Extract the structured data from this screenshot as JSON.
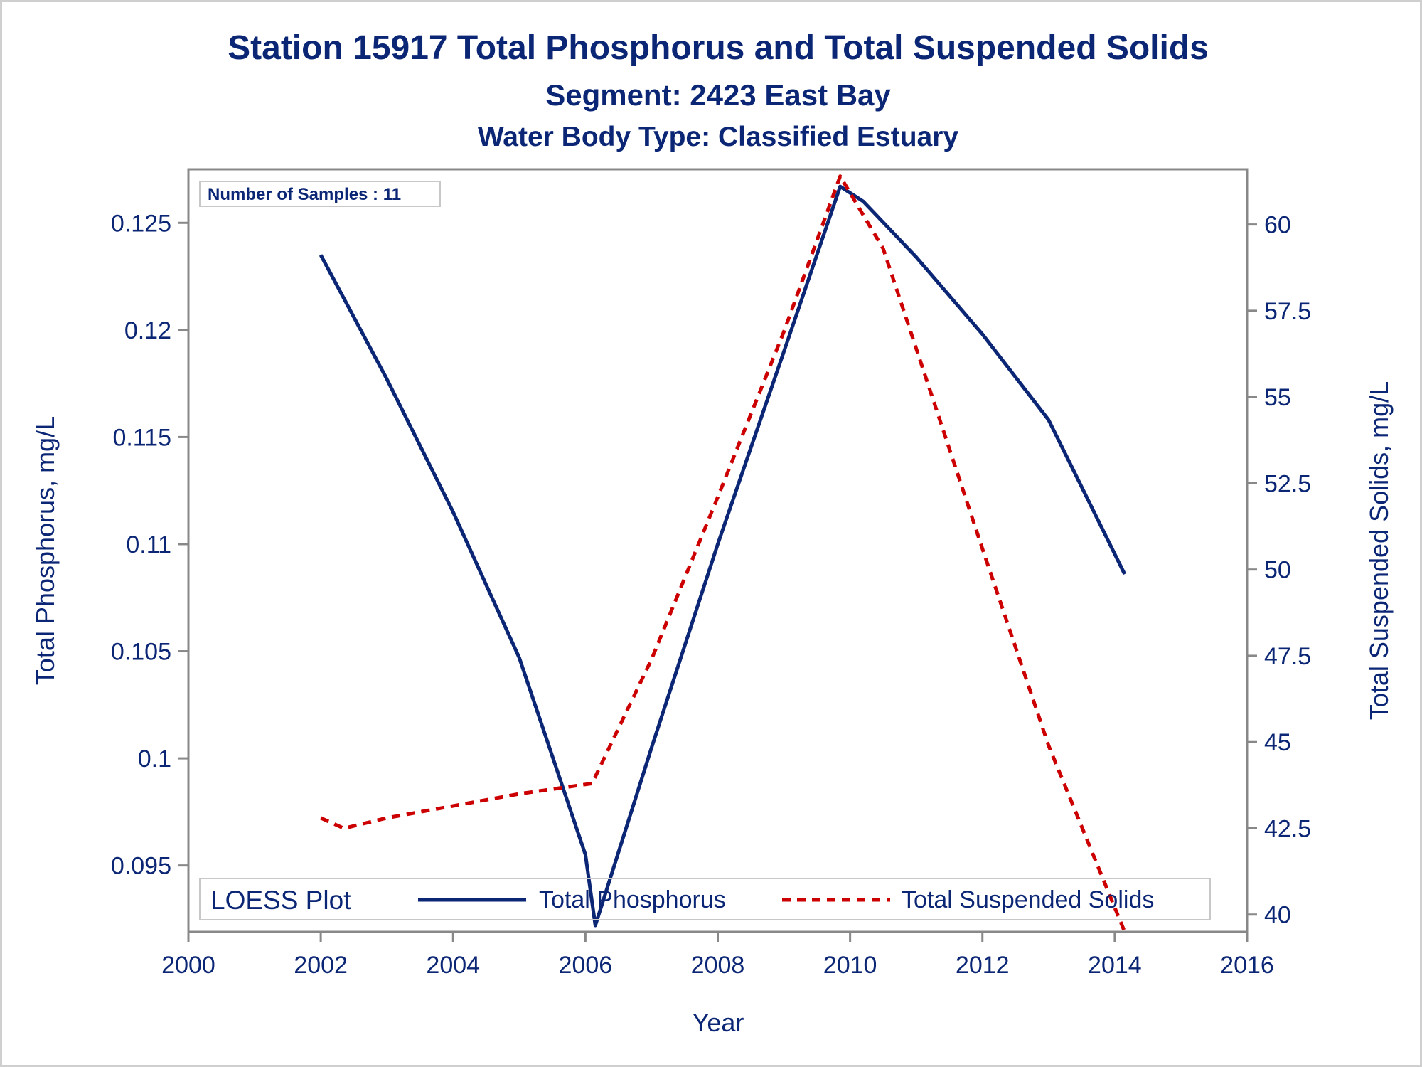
{
  "chart_data": {
    "type": "line",
    "title": "Station 15917  Total Phosphorus and Total Suspended Solids",
    "subtitle": "Segment: 2423  East Bay",
    "subtitle2": "Water Body Type: Classified Estuary",
    "xlabel": "Year",
    "ylabel_left": "Total Phosphorus, mg/L",
    "ylabel_right": "Total Suspended Solids, mg/L",
    "xlim": [
      2000,
      2016
    ],
    "ylim_left": [
      0.0919,
      0.1275
    ],
    "ylim_right": [
      39.5,
      61.6
    ],
    "x_ticks": [
      "2000",
      "2002",
      "2004",
      "2006",
      "2008",
      "2010",
      "2012",
      "2014",
      "2016"
    ],
    "y_left_ticks": [
      "0.095",
      "0.1",
      "0.105",
      "0.11",
      "0.115",
      "0.12",
      "0.125"
    ],
    "y_right_ticks": [
      "40",
      "42.5",
      "45",
      "47.5",
      "50",
      "52.5",
      "55",
      "57.5",
      "60"
    ],
    "inset_label": "Number of Samples : 11",
    "legend": {
      "title": "LOESS Plot",
      "position": "bottom-inside",
      "items": [
        "Total Phosphorus",
        "Total Suspended Solids"
      ]
    },
    "series": [
      {
        "name": "Total Phosphorus",
        "axis": "left",
        "color": "#0b2675",
        "style": "solid",
        "points": [
          [
            2002.0,
            0.1235
          ],
          [
            2003.0,
            0.1177
          ],
          [
            2004.0,
            0.1115
          ],
          [
            2005.0,
            0.1047
          ],
          [
            2006.0,
            0.0955
          ],
          [
            2006.15,
            0.0922
          ],
          [
            2007.0,
            0.1005
          ],
          [
            2008.0,
            0.11
          ],
          [
            2009.0,
            0.119
          ],
          [
            2009.85,
            0.1267
          ],
          [
            2010.2,
            0.126
          ],
          [
            2011.0,
            0.1234
          ],
          [
            2012.0,
            0.1198
          ],
          [
            2013.0,
            0.1158
          ],
          [
            2014.15,
            0.1086
          ]
        ]
      },
      {
        "name": "Total Suspended Solids",
        "axis": "right",
        "color": "#cc0000",
        "style": "dashed",
        "points": [
          [
            2002.0,
            42.8
          ],
          [
            2002.35,
            42.5
          ],
          [
            2003.0,
            42.8
          ],
          [
            2004.0,
            43.15
          ],
          [
            2005.0,
            43.5
          ],
          [
            2006.1,
            43.8
          ],
          [
            2007.0,
            47.4
          ],
          [
            2008.0,
            52.1
          ],
          [
            2009.0,
            56.9
          ],
          [
            2009.85,
            61.4
          ],
          [
            2010.5,
            59.3
          ],
          [
            2011.0,
            56.4
          ],
          [
            2012.0,
            50.6
          ],
          [
            2013.0,
            44.9
          ],
          [
            2014.15,
            39.5
          ]
        ]
      }
    ]
  }
}
